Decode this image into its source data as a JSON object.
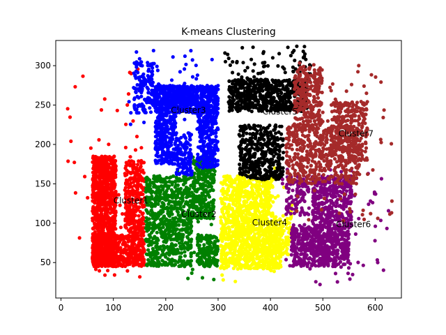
{
  "chart_data": {
    "type": "scatter",
    "title": "K-means Clustering",
    "xlabel": "",
    "ylabel": "",
    "xlim": [
      -10,
      650
    ],
    "ylim": [
      5,
      332
    ],
    "xticks": [
      0,
      100,
      200,
      300,
      400,
      500,
      600
    ],
    "yticks": [
      50,
      100,
      150,
      200,
      250,
      300
    ],
    "grid": false,
    "legend": "none",
    "clusters": [
      {
        "label": "Cluster1",
        "color": "#ff0000",
        "label_position": [
          100,
          125
        ],
        "regions": [
          {
            "x": [
              60,
              105
            ],
            "y": [
              45,
              185
            ],
            "count": 900
          },
          {
            "x": [
              60,
              160
            ],
            "y": [
              45,
              85
            ],
            "count": 500
          },
          {
            "x": [
              122,
              160
            ],
            "y": [
              85,
              180
            ],
            "count": 300
          },
          {
            "x": [
              10,
              160
            ],
            "y": [
              25,
              300
            ],
            "count": 60
          }
        ]
      },
      {
        "label": "Cluster2",
        "color": "#008000",
        "label_position": [
          230,
          108
        ],
        "regions": [
          {
            "x": [
              162,
              250
            ],
            "y": [
              45,
              160
            ],
            "count": 750
          },
          {
            "x": [
              252,
              292
            ],
            "y": [
              105,
              185
            ],
            "count": 300
          },
          {
            "x": [
              260,
              300
            ],
            "y": [
              45,
              85
            ],
            "count": 150
          },
          {
            "x": [
              220,
              295
            ],
            "y": [
              28,
              180
            ],
            "count": 30
          }
        ]
      },
      {
        "label": "Cluster3",
        "color": "#0000ff",
        "label_position": [
          210,
          240
        ],
        "regions": [
          {
            "x": [
              178,
              300
            ],
            "y": [
              240,
              275
            ],
            "count": 700
          },
          {
            "x": [
              180,
              220
            ],
            "y": [
              175,
              240
            ],
            "count": 250
          },
          {
            "x": [
              260,
              300
            ],
            "y": [
              170,
              240
            ],
            "count": 250
          },
          {
            "x": [
              220,
              250
            ],
            "y": [
              160,
              215
            ],
            "count": 120
          },
          {
            "x": [
              140,
              175
            ],
            "y": [
              240,
              305
            ],
            "count": 120
          },
          {
            "x": [
              120,
              290
            ],
            "y": [
              225,
              320
            ],
            "count": 60
          }
        ]
      },
      {
        "label": "Cluster4",
        "color": "#ffff00",
        "label_position": [
          365,
          97
        ],
        "regions": [
          {
            "x": [
              305,
              420
            ],
            "y": [
              42,
              90
            ],
            "count": 600
          },
          {
            "x": [
              335,
              405
            ],
            "y": [
              90,
              160
            ],
            "count": 500
          },
          {
            "x": [
              305,
              340
            ],
            "y": [
              90,
              160
            ],
            "count": 180
          },
          {
            "x": [
              405,
              440
            ],
            "y": [
              60,
              110
            ],
            "count": 100
          },
          {
            "x": [
              300,
              445
            ],
            "y": [
              22,
              170
            ],
            "count": 40
          }
        ]
      },
      {
        "label": "Cluster5",
        "color": "#000000",
        "label_position": [
          385,
          238
        ],
        "regions": [
          {
            "x": [
              320,
              470
            ],
            "y": [
              242,
              283
            ],
            "count": 650
          },
          {
            "x": [
              340,
              425
            ],
            "y": [
              155,
              225
            ],
            "count": 400
          },
          {
            "x": [
              310,
              480
            ],
            "y": [
              280,
              325
            ],
            "count": 70
          }
        ]
      },
      {
        "label": "Cluster6",
        "color": "#800080",
        "label_position": [
          525,
          95
        ],
        "regions": [
          {
            "x": [
              440,
              550
            ],
            "y": [
              45,
              95
            ],
            "count": 550
          },
          {
            "x": [
              480,
              555
            ],
            "y": [
              95,
              160
            ],
            "count": 400
          },
          {
            "x": [
              430,
              475
            ],
            "y": [
              110,
              160
            ],
            "count": 100
          },
          {
            "x": [
              420,
              630
            ],
            "y": [
              22,
              170
            ],
            "count": 70
          }
        ]
      },
      {
        "label": "Cluster7",
        "color": "#a52a2a",
        "label_position": [
          530,
          210
        ],
        "regions": [
          {
            "x": [
              430,
              570
            ],
            "y": [
              150,
              225
            ],
            "count": 500
          },
          {
            "x": [
              515,
              585
            ],
            "y": [
              180,
              255
            ],
            "count": 300
          },
          {
            "x": [
              445,
              500
            ],
            "y": [
              220,
              300
            ],
            "count": 250
          },
          {
            "x": [
              450,
              635
            ],
            "y": [
              100,
              310
            ],
            "count": 70
          }
        ]
      }
    ]
  }
}
